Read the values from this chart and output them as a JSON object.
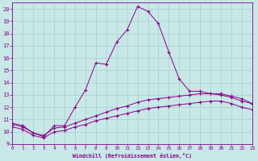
{
  "xlabel": "Windchill (Refroidissement éolien,°C)",
  "bg_color": "#c8e8e8",
  "line_color": "#880088",
  "grid_color": "#aacccc",
  "xlim": [
    0,
    23
  ],
  "ylim": [
    9,
    20.5
  ],
  "xticks": [
    0,
    1,
    2,
    3,
    4,
    5,
    6,
    7,
    8,
    9,
    10,
    11,
    12,
    13,
    14,
    15,
    16,
    17,
    18,
    19,
    20,
    21,
    22,
    23
  ],
  "yticks": [
    9,
    10,
    11,
    12,
    13,
    14,
    15,
    16,
    17,
    18,
    19,
    20
  ],
  "line1_x": [
    0,
    1,
    2,
    3,
    4,
    5,
    6,
    7,
    8,
    9,
    10,
    11,
    12,
    13,
    14,
    15,
    16,
    17,
    18,
    19,
    20,
    21,
    22,
    23
  ],
  "line1_y": [
    10.7,
    10.5,
    9.9,
    9.6,
    10.5,
    10.5,
    12.0,
    13.4,
    15.6,
    15.5,
    17.3,
    18.3,
    20.2,
    19.8,
    18.8,
    16.5,
    14.3,
    13.3,
    13.3,
    13.1,
    13.0,
    12.8,
    12.5,
    12.3
  ],
  "line2_x": [
    0,
    1,
    2,
    3,
    4,
    5,
    6,
    7,
    8,
    9,
    10,
    11,
    12,
    13,
    14,
    15,
    16,
    17,
    18,
    19,
    20,
    21,
    22,
    23
  ],
  "line2_y": [
    10.6,
    10.4,
    9.9,
    9.7,
    10.3,
    10.4,
    10.7,
    11.0,
    11.3,
    11.6,
    11.9,
    12.1,
    12.4,
    12.6,
    12.7,
    12.8,
    12.9,
    13.0,
    13.1,
    13.1,
    13.1,
    12.9,
    12.7,
    12.3
  ],
  "line3_x": [
    0,
    1,
    2,
    3,
    4,
    5,
    6,
    7,
    8,
    9,
    10,
    11,
    12,
    13,
    14,
    15,
    16,
    17,
    18,
    19,
    20,
    21,
    22,
    23
  ],
  "line3_y": [
    10.4,
    10.2,
    9.7,
    9.5,
    10.0,
    10.1,
    10.4,
    10.6,
    10.9,
    11.1,
    11.3,
    11.5,
    11.7,
    11.9,
    12.0,
    12.1,
    12.2,
    12.3,
    12.4,
    12.5,
    12.5,
    12.3,
    12.0,
    11.8
  ]
}
